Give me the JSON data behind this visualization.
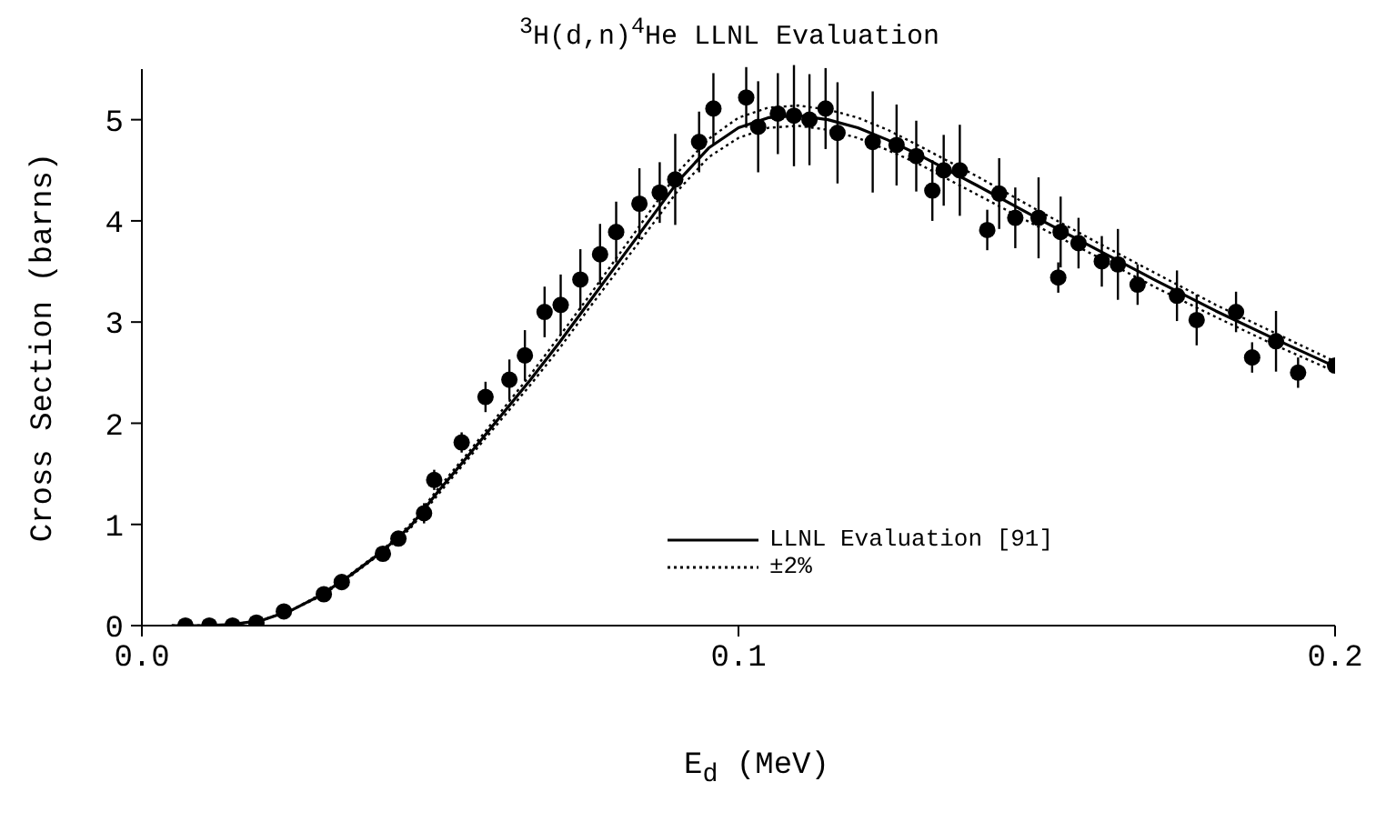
{
  "chart_data": {
    "type": "line",
    "title": "$^{3}$H(d,n)$^{4}$He LLNL Evaluation",
    "xlabel": "E$_{d}$ (MeV)",
    "ylabel": "Cross Section (barns)",
    "xlim": [
      0,
      0.2
    ],
    "xticks": [
      {
        "value": 0,
        "label": "0.0"
      },
      0.1,
      0.2
    ],
    "ylim": [
      0,
      5.5
    ],
    "yticks": [
      0,
      1,
      2,
      3,
      4,
      5
    ],
    "grid": false,
    "legend": "bottom right",
    "series": [
      {
        "name": "LLNL Evaluation [91]",
        "color": "#000000",
        "line_style": "solid",
        "marker": "none",
        "x": [
          0.005,
          0.01,
          0.015,
          0.02,
          0.025,
          0.03,
          0.035,
          0.04,
          0.045,
          0.05,
          0.055,
          0.06,
          0.065,
          0.07,
          0.075,
          0.08,
          0.085,
          0.09,
          0.095,
          0.1,
          0.105,
          0.11,
          0.115,
          0.12,
          0.125,
          0.13,
          0.14,
          0.15,
          0.16,
          0.17,
          0.18,
          0.19,
          0.2
        ],
        "values": [
          0,
          0,
          0.01,
          0.05,
          0.15,
          0.3,
          0.5,
          0.72,
          0.98,
          1.35,
          1.7,
          2.06,
          2.42,
          2.8,
          3.2,
          3.6,
          4.0,
          4.4,
          4.72,
          4.92,
          5.02,
          5.04,
          5.0,
          4.92,
          4.8,
          4.66,
          4.35,
          4.03,
          3.72,
          3.41,
          3.11,
          2.83,
          2.56
        ]
      },
      {
        "name": "±2%",
        "type": "line",
        "color": "#000000",
        "line_style": "dotted",
        "marker": "none",
        "x": [
          0.005,
          0.01,
          0.015,
          0.02,
          0.025,
          0.03,
          0.035,
          0.04,
          0.045,
          0.05,
          0.055,
          0.06,
          0.065,
          0.07,
          0.075,
          0.08,
          0.085,
          0.09,
          0.095,
          0.1,
          0.105,
          0.11,
          0.115,
          0.12,
          0.125,
          0.13,
          0.14,
          0.15,
          0.16,
          0.17,
          0.18,
          0.19,
          0.2
        ],
        "values": [
          0,
          0,
          0.01,
          0.05,
          0.15,
          0.31,
          0.51,
          0.73,
          1.0,
          1.38,
          1.73,
          2.1,
          2.47,
          2.86,
          3.26,
          3.67,
          4.08,
          4.49,
          4.81,
          5.02,
          5.12,
          5.14,
          5.1,
          5.02,
          4.9,
          4.75,
          4.44,
          4.11,
          3.79,
          3.48,
          3.17,
          2.89,
          2.61
        ]
      },
      {
        "type": "line",
        "color": "#000000",
        "line_style": "dotted",
        "marker": "none",
        "x": [
          0.005,
          0.01,
          0.015,
          0.02,
          0.025,
          0.03,
          0.035,
          0.04,
          0.045,
          0.05,
          0.055,
          0.06,
          0.065,
          0.07,
          0.075,
          0.08,
          0.085,
          0.09,
          0.095,
          0.1,
          0.105,
          0.11,
          0.115,
          0.12,
          0.125,
          0.13,
          0.14,
          0.15,
          0.16,
          0.17,
          0.18,
          0.19,
          0.2
        ],
        "values": [
          0,
          0,
          0.01,
          0.05,
          0.15,
          0.29,
          0.49,
          0.71,
          0.96,
          1.32,
          1.67,
          2.02,
          2.37,
          2.74,
          3.14,
          3.53,
          3.92,
          4.31,
          4.63,
          4.82,
          4.92,
          4.94,
          4.9,
          4.82,
          4.7,
          4.57,
          4.26,
          3.95,
          3.65,
          3.34,
          3.05,
          2.77,
          2.51
        ]
      },
      {
        "type": "scatter",
        "color": "#000000",
        "marker": "circle",
        "x": [
          0.0073,
          0.0113,
          0.0152,
          0.0192,
          0.0238,
          0.0305,
          0.0335,
          0.0404,
          0.043,
          0.0473,
          0.049,
          0.0536,
          0.0576,
          0.0616,
          0.0642,
          0.0675,
          0.0702,
          0.0735,
          0.0768,
          0.0795,
          0.0834,
          0.0868,
          0.0894,
          0.0934,
          0.0958,
          0.1013,
          0.1033,
          0.1066,
          0.1093,
          0.1119,
          0.1146,
          0.1166,
          0.1225,
          0.1265,
          0.1298,
          0.1325,
          0.1344,
          0.1371,
          0.1417,
          0.1437,
          0.1464,
          0.1503,
          0.1536,
          0.154,
          0.157,
          0.1609,
          0.1636,
          0.1669,
          0.1735,
          0.1768,
          0.1834,
          0.1861,
          0.1901,
          0.1938,
          0.2
        ],
        "values": [
          0,
          0,
          0,
          0.03,
          0.14,
          0.31,
          0.43,
          0.71,
          0.86,
          1.11,
          1.44,
          1.81,
          2.26,
          2.43,
          2.67,
          3.1,
          3.17,
          3.42,
          3.67,
          3.89,
          4.17,
          4.28,
          4.41,
          4.78,
          5.11,
          5.22,
          4.93,
          5.06,
          5.04,
          5.0,
          5.11,
          4.87,
          4.78,
          4.75,
          4.64,
          4.3,
          4.5,
          4.5,
          3.91,
          4.27,
          4.03,
          4.03,
          3.44,
          3.89,
          3.78,
          3.6,
          3.57,
          3.37,
          3.26,
          3.02,
          3.1,
          2.65,
          2.81,
          2.5,
          2.57
        ],
        "errors": [
          null,
          null,
          null,
          null,
          null,
          null,
          null,
          null,
          null,
          0.1,
          0.1,
          0.1,
          0.15,
          0.2,
          0.25,
          0.25,
          0.3,
          0.3,
          0.3,
          0.3,
          0.35,
          0.3,
          0.45,
          0.3,
          0.35,
          0.3,
          0.45,
          0.4,
          0.5,
          0.45,
          0.4,
          0.5,
          0.5,
          0.4,
          0.35,
          0.3,
          0.35,
          0.45,
          0.2,
          0.35,
          0.3,
          0.4,
          0.15,
          0.35,
          0.25,
          0.25,
          0.35,
          0.2,
          0.25,
          0.25,
          0.2,
          0.15,
          0.3,
          0.15,
          null
        ]
      }
    ]
  }
}
